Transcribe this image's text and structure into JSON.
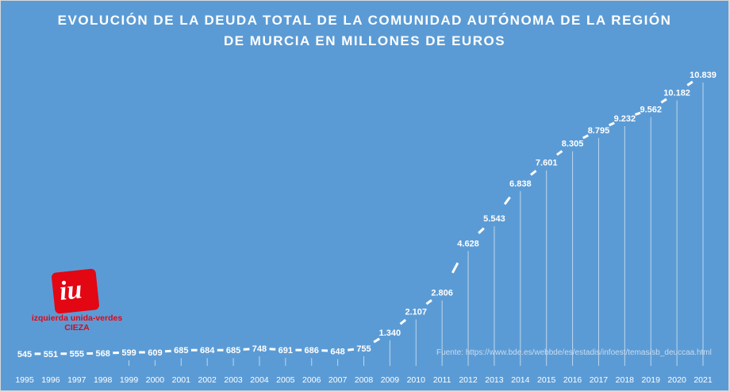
{
  "chart_data": {
    "type": "line",
    "title": [
      "EVOLUCIÓN DE LA DEUDA TOTAL DE LA COMUNIDAD AUTÓNOMA DE LA REGIÓN",
      "DE MURCIA EN MILLONES DE EUROS"
    ],
    "categories": [
      "1995",
      "1996",
      "1997",
      "1998",
      "1999",
      "2000",
      "2001",
      "2002",
      "2003",
      "2004",
      "2005",
      "2006",
      "2007",
      "2008",
      "2009",
      "2010",
      "2011",
      "2012",
      "2013",
      "2014",
      "2015",
      "2016",
      "2017",
      "2018",
      "2019",
      "2020",
      "2021"
    ],
    "values": [
      545,
      551,
      555,
      568,
      599,
      609,
      685,
      684,
      685,
      748,
      691,
      686,
      648,
      755,
      1340,
      2107,
      2806,
      4628,
      5543,
      6838,
      7601,
      8305,
      8795,
      9232,
      9562,
      10182,
      10839
    ],
    "labels": [
      "545",
      "551",
      "555",
      "568",
      "599",
      "609",
      "685",
      "684",
      "685",
      "748",
      "691",
      "686",
      "648",
      "755",
      "1.340",
      "2.107",
      "2.806",
      "4.628",
      "5.543",
      "6.838",
      "7.601",
      "8.305",
      "8.795",
      "9.232",
      "9.562",
      "10.182",
      "10.839"
    ],
    "xlabel": "",
    "ylabel": "",
    "ylim": [
      545,
      10839
    ],
    "grid": false,
    "legend": "none",
    "line_color": "#ffffff",
    "background": "#5b9bd5"
  },
  "source": "Fuente: https://www.bde.es/webbde/es/estadis/infoest/temas/sb_deuccaa.html",
  "logo": {
    "mark": "iu",
    "name": "izquierda unida-verdes",
    "place": "CIEZA"
  }
}
